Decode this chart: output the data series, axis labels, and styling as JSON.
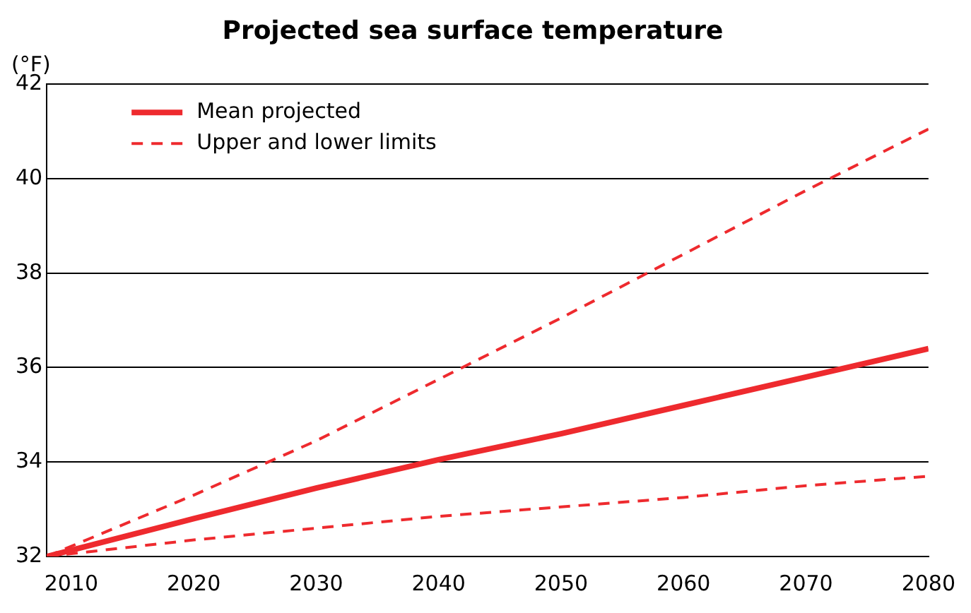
{
  "chart_data": {
    "type": "line",
    "title": "Projected sea surface temperature",
    "ylabel": "(°F)",
    "x": [
      2008,
      2020,
      2030,
      2040,
      2050,
      2060,
      2070,
      2080
    ],
    "series": [
      {
        "name": "Mean projected",
        "color": "#ee2a2e",
        "line_style": "solid",
        "values": [
          32,
          32.8,
          33.45,
          34.05,
          34.6,
          35.2,
          35.8,
          36.4
        ]
      },
      {
        "name": "Upper and lower limits",
        "color": "#ee2a2e",
        "line_style": "dashed",
        "values": [
          32,
          33.3,
          34.45,
          35.75,
          37.05,
          38.4,
          39.75,
          41.05
        ]
      },
      {
        "color": "#ee2a2e",
        "line_style": "dashed",
        "values": [
          32,
          32.35,
          32.6,
          32.85,
          33.05,
          33.25,
          33.5,
          33.7
        ]
      }
    ],
    "xlim": [
      2008,
      2080
    ],
    "xticks": [
      2010,
      2020,
      2030,
      2040,
      2050,
      2060,
      2070,
      2080
    ],
    "ylim": [
      32,
      42
    ],
    "yticks": [
      32,
      34,
      36,
      38,
      40,
      42
    ],
    "grid": "y",
    "legend": "top left"
  }
}
